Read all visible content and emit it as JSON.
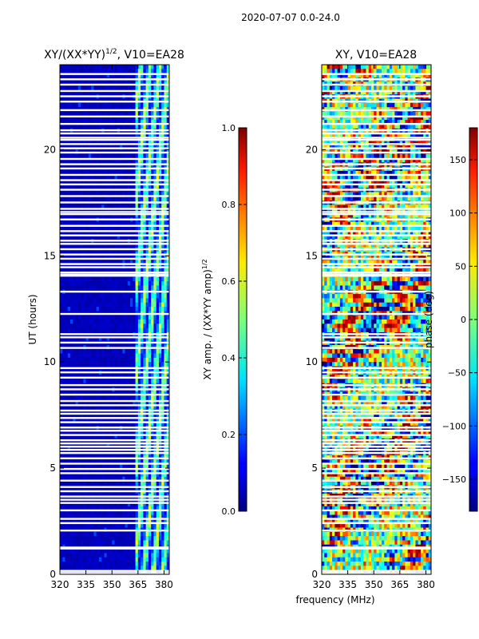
{
  "suptitle": "2020-07-07 0.0-24.0",
  "chart_data": [
    {
      "type": "heatmap",
      "title_prefix": "XY/(XX*YY)",
      "title_sup": "1/2",
      "title_suffix": ", V10=EA28",
      "ylabel": "UT (hours)",
      "xlim": [
        320,
        383
      ],
      "ylim": [
        0,
        24
      ],
      "xticks": [
        320,
        335,
        350,
        365,
        380
      ],
      "yticks": [
        0,
        5,
        10,
        15,
        20
      ],
      "colorbar": {
        "label_prefix": "XY amp. / (XX*YY amp)",
        "label_sup": "1/2",
        "range": [
          0.0,
          1.0
        ],
        "ticks": [
          "0.0",
          "0.2",
          "0.4",
          "0.6",
          "0.8",
          "1.0"
        ],
        "tick_values": [
          0.0,
          0.2,
          0.4,
          0.6,
          0.8,
          1.0
        ],
        "colormap": "jet"
      },
      "description_values": {
        "low_band_level": 0.04,
        "high_band_start_mhz": 363,
        "high_band_level_range": [
          0.1,
          0.65
        ]
      }
    },
    {
      "type": "heatmap",
      "title": "XY, V10=EA28",
      "xlabel": "frequency (MHz)",
      "xlim": [
        320,
        383
      ],
      "ylim": [
        0,
        24
      ],
      "xticks": [
        320,
        335,
        350,
        365,
        380
      ],
      "yticks": [
        0,
        5,
        10,
        15,
        20
      ],
      "colorbar": {
        "label": "phase (deg)",
        "range": [
          -180,
          180
        ],
        "ticks": [
          "150",
          "100",
          "50",
          "0",
          "−50",
          "−100",
          "−150"
        ],
        "tick_values": [
          150,
          100,
          50,
          0,
          -50,
          -100,
          -150
        ],
        "colormap": "jet"
      }
    }
  ],
  "flagged_hours": [
    0.05,
    0.15,
    1.2,
    1.25,
    2.05,
    2.4,
    2.6,
    3.0,
    3.35,
    3.5,
    3.65,
    3.9,
    4.1,
    4.4,
    4.75,
    4.95,
    5.2,
    5.45,
    5.7,
    5.85,
    6.0,
    6.15,
    6.3,
    6.55,
    6.75,
    6.9,
    7.15,
    7.35,
    7.55,
    7.7,
    7.95,
    8.15,
    8.45,
    8.7,
    8.9,
    9.25,
    9.5,
    9.7,
    10.65,
    10.9,
    11.15,
    11.3,
    12.25,
    13.3,
    14.05,
    14.1,
    14.2,
    14.45,
    14.6,
    14.85,
    15.05,
    15.3,
    15.55,
    15.7,
    15.95,
    16.15,
    16.4,
    16.7,
    16.95,
    17.05,
    17.2,
    17.5,
    17.8,
    18.1,
    18.35,
    18.55,
    18.8,
    19.1,
    19.3,
    19.55,
    19.85,
    20.05,
    20.25,
    20.45,
    20.55,
    20.75,
    20.9,
    21.2,
    21.55,
    21.85,
    22.25,
    22.5,
    22.75,
    23.05,
    23.3,
    23.55
  ]
}
